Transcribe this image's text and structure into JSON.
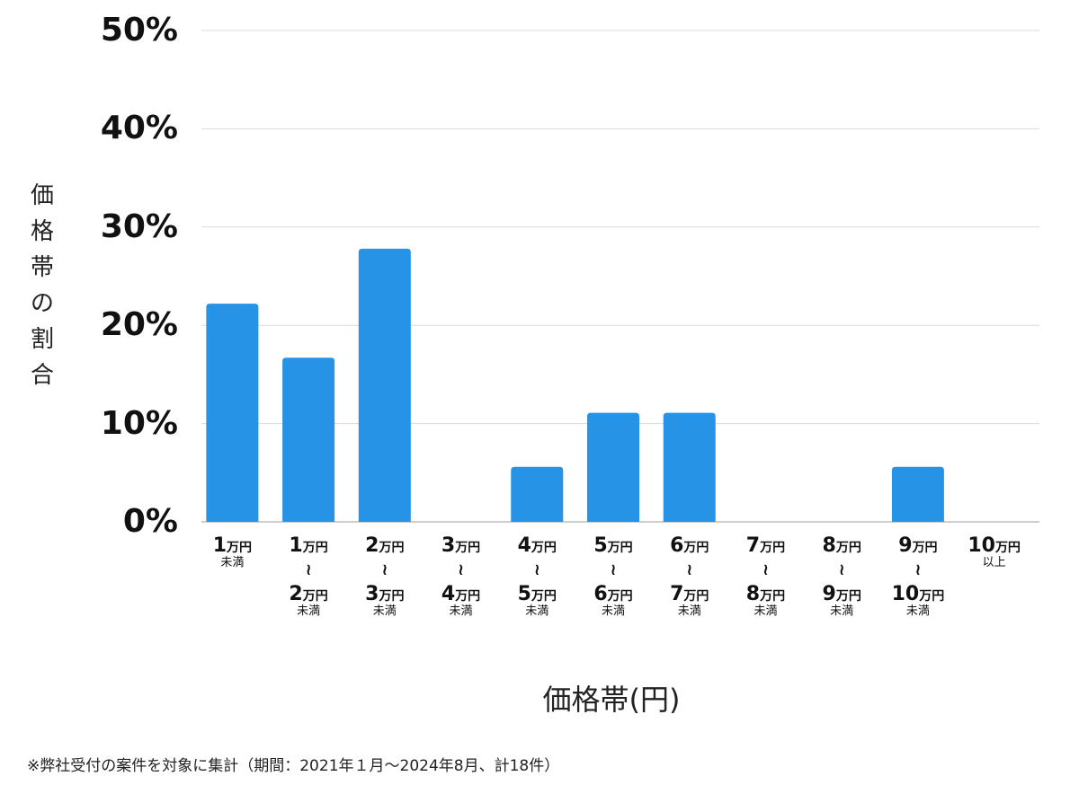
{
  "chart_data": {
    "type": "bar",
    "categories": [
      {
        "start": "1",
        "end": null,
        "note": "未満"
      },
      {
        "start": "1",
        "end": "2",
        "note": "未満"
      },
      {
        "start": "2",
        "end": "3",
        "note": "未満"
      },
      {
        "start": "3",
        "end": "4",
        "note": "未満"
      },
      {
        "start": "4",
        "end": "5",
        "note": "未満"
      },
      {
        "start": "5",
        "end": "6",
        "note": "未満"
      },
      {
        "start": "6",
        "end": "7",
        "note": "未満"
      },
      {
        "start": "7",
        "end": "8",
        "note": "未満"
      },
      {
        "start": "8",
        "end": "9",
        "note": "未満"
      },
      {
        "start": "9",
        "end": "10",
        "note": "未満"
      },
      {
        "start": "10",
        "end": null,
        "note": "以上"
      }
    ],
    "unit_label": "万円",
    "range_symbol": "〜",
    "values": [
      22.2,
      16.7,
      27.8,
      0,
      5.6,
      11.1,
      11.1,
      0,
      0,
      5.6,
      0
    ],
    "yticks": [
      "0%",
      "10%",
      "20%",
      "30%",
      "40%",
      "50%"
    ],
    "ylim": [
      0,
      50
    ],
    "ylabel": "価格帯の割合",
    "xlabel": "価格帯(円)",
    "grid": true,
    "bar_color": "#2693E6",
    "grid_color": "#d9d9d9"
  },
  "footnote": "※弊社受付の案件を対象に集計（期間：2021年１月〜2024年8月、計18件）"
}
